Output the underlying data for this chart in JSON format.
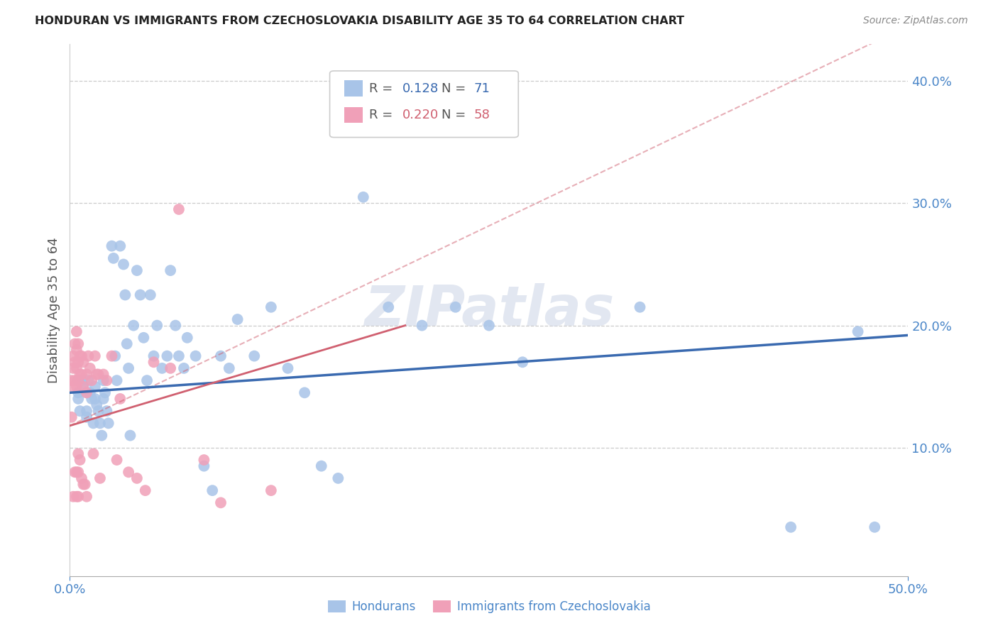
{
  "title": "HONDURAN VS IMMIGRANTS FROM CZECHOSLOVAKIA DISABILITY AGE 35 TO 64 CORRELATION CHART",
  "source": "Source: ZipAtlas.com",
  "ylabel": "Disability Age 35 to 64",
  "xlim": [
    0.0,
    0.5
  ],
  "ylim": [
    -0.005,
    0.43
  ],
  "xticks": [
    0.0,
    0.5
  ],
  "yticks": [
    0.1,
    0.2,
    0.3,
    0.4
  ],
  "blue_scatter_x": [
    0.005,
    0.005,
    0.005,
    0.006,
    0.007,
    0.008,
    0.01,
    0.01,
    0.01,
    0.011,
    0.012,
    0.013,
    0.014,
    0.015,
    0.015,
    0.016,
    0.017,
    0.018,
    0.019,
    0.02,
    0.02,
    0.021,
    0.022,
    0.023,
    0.025,
    0.026,
    0.027,
    0.028,
    0.03,
    0.032,
    0.033,
    0.034,
    0.035,
    0.036,
    0.038,
    0.04,
    0.042,
    0.044,
    0.046,
    0.048,
    0.05,
    0.052,
    0.055,
    0.058,
    0.06,
    0.063,
    0.065,
    0.068,
    0.07,
    0.075,
    0.08,
    0.085,
    0.09,
    0.095,
    0.1,
    0.11,
    0.12,
    0.13,
    0.14,
    0.15,
    0.16,
    0.175,
    0.19,
    0.21,
    0.23,
    0.25,
    0.27,
    0.34,
    0.43,
    0.47,
    0.48
  ],
  "blue_scatter_y": [
    0.155,
    0.145,
    0.14,
    0.13,
    0.155,
    0.15,
    0.145,
    0.13,
    0.125,
    0.155,
    0.145,
    0.14,
    0.12,
    0.15,
    0.14,
    0.135,
    0.13,
    0.12,
    0.11,
    0.155,
    0.14,
    0.145,
    0.13,
    0.12,
    0.265,
    0.255,
    0.175,
    0.155,
    0.265,
    0.25,
    0.225,
    0.185,
    0.165,
    0.11,
    0.2,
    0.245,
    0.225,
    0.19,
    0.155,
    0.225,
    0.175,
    0.2,
    0.165,
    0.175,
    0.245,
    0.2,
    0.175,
    0.165,
    0.19,
    0.175,
    0.085,
    0.065,
    0.175,
    0.165,
    0.205,
    0.175,
    0.215,
    0.165,
    0.145,
    0.085,
    0.075,
    0.305,
    0.215,
    0.2,
    0.215,
    0.2,
    0.17,
    0.215,
    0.035,
    0.195,
    0.035
  ],
  "pink_scatter_x": [
    0.001,
    0.001,
    0.002,
    0.002,
    0.002,
    0.002,
    0.003,
    0.003,
    0.003,
    0.003,
    0.004,
    0.004,
    0.004,
    0.004,
    0.004,
    0.004,
    0.005,
    0.005,
    0.005,
    0.005,
    0.005,
    0.005,
    0.006,
    0.006,
    0.006,
    0.007,
    0.007,
    0.007,
    0.008,
    0.008,
    0.008,
    0.009,
    0.01,
    0.01,
    0.01,
    0.011,
    0.012,
    0.013,
    0.014,
    0.015,
    0.016,
    0.017,
    0.018,
    0.02,
    0.022,
    0.025,
    0.028,
    0.03,
    0.035,
    0.04,
    0.045,
    0.05,
    0.06,
    0.065,
    0.08,
    0.09,
    0.12,
    0.2
  ],
  "pink_scatter_y": [
    0.155,
    0.125,
    0.175,
    0.165,
    0.15,
    0.06,
    0.185,
    0.17,
    0.155,
    0.08,
    0.195,
    0.18,
    0.165,
    0.15,
    0.08,
    0.06,
    0.185,
    0.17,
    0.155,
    0.095,
    0.08,
    0.06,
    0.175,
    0.16,
    0.09,
    0.175,
    0.16,
    0.075,
    0.17,
    0.15,
    0.07,
    0.07,
    0.16,
    0.145,
    0.06,
    0.175,
    0.165,
    0.155,
    0.095,
    0.175,
    0.16,
    0.16,
    0.075,
    0.16,
    0.155,
    0.175,
    0.09,
    0.14,
    0.08,
    0.075,
    0.065,
    0.17,
    0.165,
    0.295,
    0.09,
    0.055,
    0.065,
    0.37
  ],
  "blue_line_x": [
    0.0,
    0.5
  ],
  "blue_line_y": [
    0.145,
    0.192
  ],
  "pink_line_x": [
    0.0,
    0.2
  ],
  "pink_line_y": [
    0.118,
    0.2
  ],
  "blue_color": "#3a6ab0",
  "pink_color": "#d06070",
  "blue_scatter_color": "#a8c4e8",
  "pink_scatter_color": "#f0a0b8",
  "watermark": "ZIPatlas",
  "legend_label1": "Hondurans",
  "legend_label2": "Immigrants from Czechoslovakia",
  "legend_R1": "R = ",
  "legend_val1": "0.128",
  "legend_N1": "N = ",
  "legend_nval1": "71",
  "legend_R2": "R = ",
  "legend_val2": "0.220",
  "legend_N2": "N = ",
  "legend_nval2": "58"
}
